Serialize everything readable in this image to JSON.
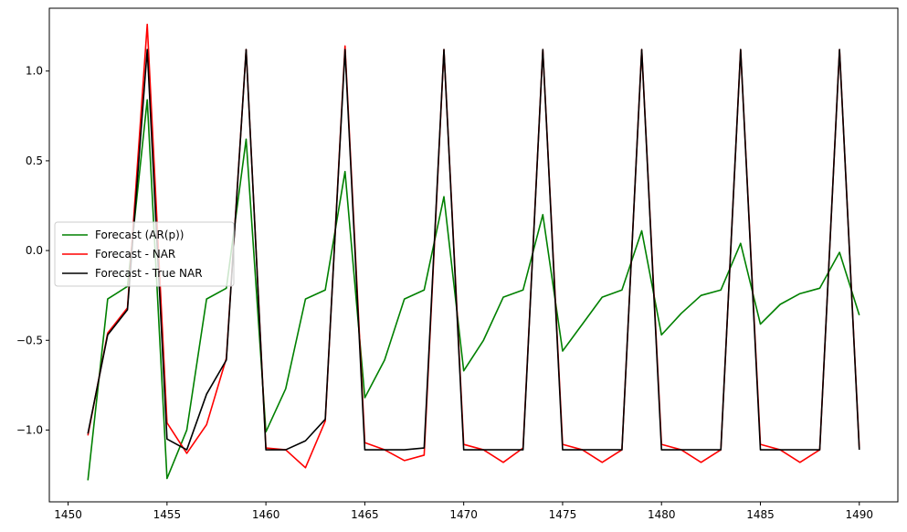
{
  "chart_data": {
    "type": "line",
    "title": "",
    "xlabel": "",
    "ylabel": "",
    "xlim": [
      1449.05,
      1491.95
    ],
    "ylim": [
      -1.4,
      1.35
    ],
    "xticks": [
      1450,
      1455,
      1460,
      1465,
      1470,
      1475,
      1480,
      1485,
      1490
    ],
    "xtick_labels": [
      "1450",
      "1455",
      "1460",
      "1465",
      "1470",
      "1475",
      "1480",
      "1485",
      "1490"
    ],
    "yticks": [
      -1.0,
      -0.5,
      0.0,
      0.5,
      1.0
    ],
    "ytick_labels": [
      "−1.0",
      "−0.5",
      "0.0",
      "0.5",
      "1.0"
    ],
    "grid": false,
    "legend_position": "center-left",
    "x": [
      1451,
      1452,
      1453,
      1454,
      1455,
      1456,
      1457,
      1458,
      1459,
      1460,
      1461,
      1462,
      1463,
      1464,
      1465,
      1466,
      1467,
      1468,
      1469,
      1470,
      1471,
      1472,
      1473,
      1474,
      1475,
      1476,
      1477,
      1478,
      1479,
      1480,
      1481,
      1482,
      1483,
      1484,
      1485,
      1486,
      1487,
      1488,
      1489,
      1490
    ],
    "series": [
      {
        "name": "Forecast (AR(p))",
        "color": "#008000",
        "values": [
          -1.28,
          -0.27,
          -0.2,
          0.84,
          -1.27,
          -1.0,
          -0.27,
          -0.21,
          0.62,
          -1.01,
          -0.77,
          -0.27,
          -0.22,
          0.44,
          -0.82,
          -0.61,
          -0.27,
          -0.22,
          0.3,
          -0.67,
          -0.5,
          -0.26,
          -0.22,
          0.2,
          -0.56,
          -0.41,
          -0.26,
          -0.22,
          0.11,
          -0.47,
          -0.35,
          -0.25,
          -0.22,
          0.04,
          -0.41,
          -0.3,
          -0.24,
          -0.21,
          -0.01,
          -0.36
        ]
      },
      {
        "name": "Forecast - NAR",
        "color": "#ff0000",
        "values": [
          -1.03,
          -0.46,
          -0.32,
          1.26,
          -0.96,
          -1.13,
          -0.97,
          -0.6,
          1.12,
          -1.1,
          -1.11,
          -1.21,
          -0.95,
          1.14,
          -1.07,
          -1.11,
          -1.17,
          -1.14,
          1.12,
          -1.08,
          -1.11,
          -1.18,
          -1.1,
          1.12,
          -1.08,
          -1.11,
          -1.18,
          -1.11,
          1.12,
          -1.08,
          -1.11,
          -1.18,
          -1.11,
          1.12,
          -1.08,
          -1.11,
          -1.18,
          -1.11,
          1.12,
          -1.1
        ]
      },
      {
        "name": "Forecast - True NAR",
        "color": "#000000",
        "values": [
          -1.02,
          -0.47,
          -0.33,
          1.12,
          -1.05,
          -1.11,
          -0.8,
          -0.61,
          1.12,
          -1.11,
          -1.11,
          -1.06,
          -0.94,
          1.12,
          -1.11,
          -1.11,
          -1.11,
          -1.1,
          1.12,
          -1.11,
          -1.11,
          -1.11,
          -1.11,
          1.12,
          -1.11,
          -1.11,
          -1.11,
          -1.11,
          1.12,
          -1.11,
          -1.11,
          -1.11,
          -1.11,
          1.12,
          -1.11,
          -1.11,
          -1.11,
          -1.11,
          1.12,
          -1.11
        ]
      }
    ]
  }
}
